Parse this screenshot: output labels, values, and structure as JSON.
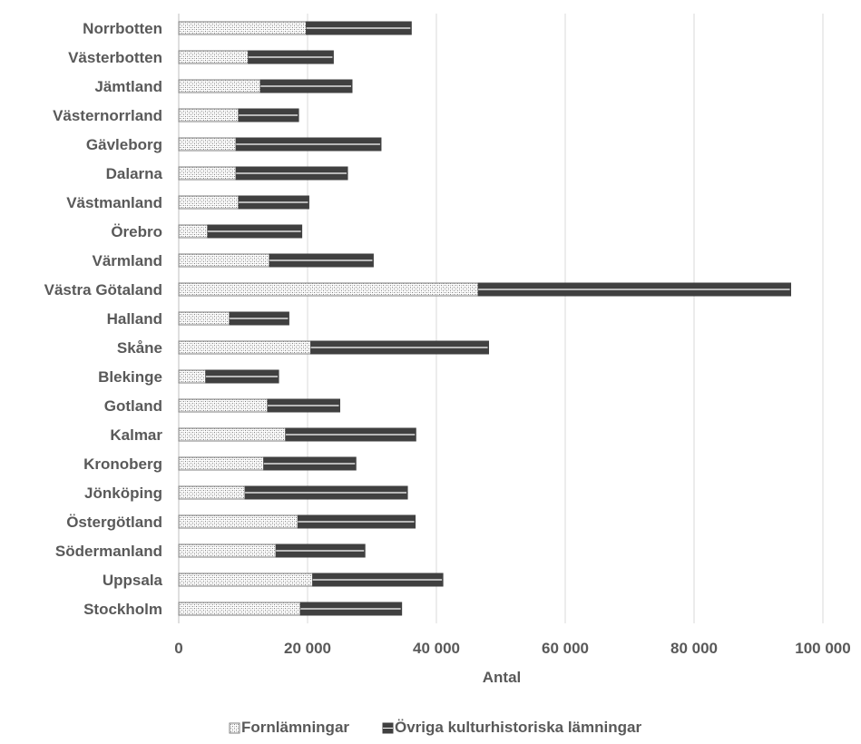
{
  "chart_data": {
    "type": "bar",
    "orientation": "horizontal",
    "stacked": true,
    "categories": [
      "Norrbotten",
      "Västerbotten",
      "Jämtland",
      "Västernorrland",
      "Gävleborg",
      "Dalarna",
      "Västmanland",
      "Örebro",
      "Värmland",
      "Västra Götaland",
      "Halland",
      "Skåne",
      "Blekinge",
      "Gotland",
      "Kalmar",
      "Kronoberg",
      "Jönköping",
      "Östergötland",
      "Södermanland",
      "Uppsala",
      "Stockholm"
    ],
    "series": [
      {
        "name": "Fornlämningar",
        "values": [
          19800,
          10800,
          12700,
          9300,
          8900,
          8900,
          9300,
          4500,
          14100,
          46500,
          7900,
          20500,
          4200,
          13800,
          16600,
          13200,
          10300,
          18500,
          15100,
          20800,
          18900
        ],
        "pattern": "crosshatch",
        "color": "#bfbfbf"
      },
      {
        "name": "Övriga kulturhistoriska lämningar",
        "values": [
          16300,
          13200,
          14200,
          9300,
          22500,
          17300,
          10900,
          14600,
          16100,
          48500,
          9200,
          27600,
          11300,
          11200,
          20200,
          14300,
          25200,
          18200,
          13800,
          20200,
          15700
        ],
        "pattern": "striped",
        "color": "#404040"
      }
    ],
    "xlabel": "Antal",
    "xlim": [
      0,
      100000
    ],
    "xticks": [
      "0",
      "20 000",
      "40 000",
      "60 000",
      "80 000",
      "100 000"
    ],
    "grid": "vertical",
    "legend": "bottom"
  }
}
